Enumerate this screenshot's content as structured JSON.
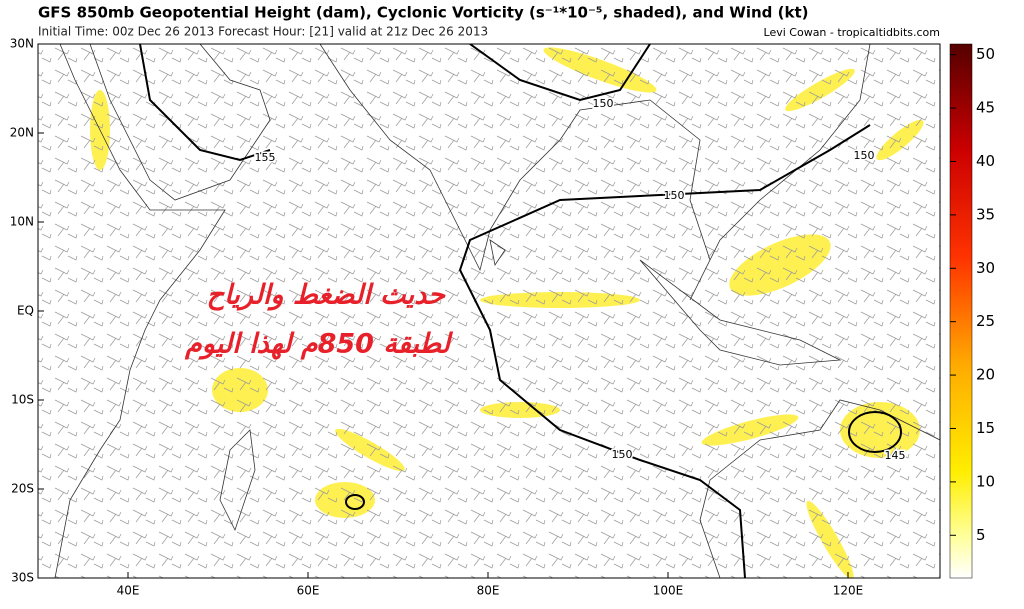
{
  "header": {
    "title": "GFS 850mb Geopotential Height (dam), Cyclonic Vorticity (s⁻¹*10⁻⁵, shaded), and Wind (kt)",
    "subtitle": "Initial Time: 00z Dec 26 2013 Forecast Hour: [21] valid at 21z Dec 26 2013",
    "credit": "Levi Cowan - tropicaltidbits.com"
  },
  "map": {
    "lat_labels": [
      "30N",
      "20N",
      "10N",
      "EQ",
      "10S",
      "20S",
      "30S"
    ],
    "lon_labels": [
      "40E",
      "60E",
      "80E",
      "100E",
      "120E"
    ],
    "contour_labels": [
      "155",
      "150",
      "150",
      "150",
      "150",
      "145"
    ]
  },
  "colorbar": {
    "lim": [
      1,
      51
    ],
    "ticks": [
      5,
      10,
      15,
      20,
      25,
      30,
      35,
      40,
      45,
      50
    ]
  },
  "overlay": {
    "lines": [
      "حديث الضغط والرياح",
      "لطبقة 850م لهذا اليوم"
    ]
  }
}
